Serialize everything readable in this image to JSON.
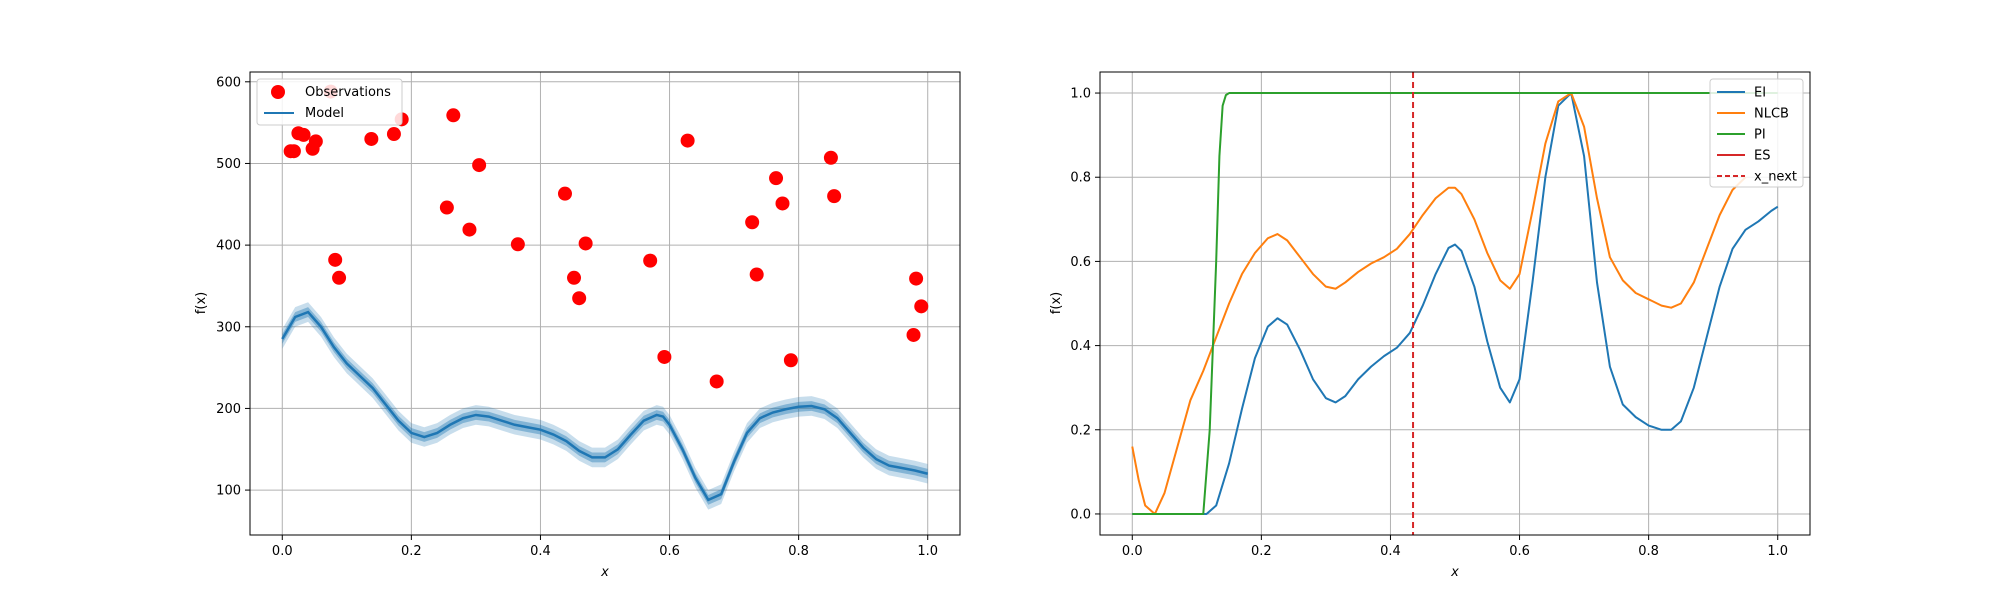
{
  "chart_data": [
    {
      "type": "scatter",
      "title": "",
      "xlabel": "x",
      "ylabel": "f(x)",
      "xlim": [
        -0.05,
        1.05
      ],
      "ylim": [
        45,
        612
      ],
      "xticks": [
        0.0,
        0.2,
        0.4,
        0.6,
        0.8,
        1.0
      ],
      "xtick_labels": [
        "0.0",
        "0.2",
        "0.4",
        "0.6",
        "0.8",
        "1.0"
      ],
      "yticks": [
        100,
        200,
        300,
        400,
        500,
        600
      ],
      "ytick_labels": [
        "100",
        "200",
        "300",
        "400",
        "500",
        "600"
      ],
      "grid": true,
      "legend_position": "top-left",
      "legend": [
        "Observations",
        "Model"
      ],
      "colors": {
        "observations": "#ff0000",
        "model": "#1f77b4",
        "band": "#1f77b4"
      },
      "observations": [
        {
          "x": 0.013,
          "y": 515
        },
        {
          "x": 0.018,
          "y": 515
        },
        {
          "x": 0.025,
          "y": 537
        },
        {
          "x": 0.033,
          "y": 535
        },
        {
          "x": 0.047,
          "y": 518
        },
        {
          "x": 0.052,
          "y": 527
        },
        {
          "x": 0.075,
          "y": 588
        },
        {
          "x": 0.082,
          "y": 382
        },
        {
          "x": 0.088,
          "y": 360
        },
        {
          "x": 0.138,
          "y": 530
        },
        {
          "x": 0.173,
          "y": 536
        },
        {
          "x": 0.185,
          "y": 554
        },
        {
          "x": 0.255,
          "y": 446
        },
        {
          "x": 0.265,
          "y": 559
        },
        {
          "x": 0.29,
          "y": 419
        },
        {
          "x": 0.305,
          "y": 498
        },
        {
          "x": 0.365,
          "y": 401
        },
        {
          "x": 0.438,
          "y": 463
        },
        {
          "x": 0.452,
          "y": 360
        },
        {
          "x": 0.46,
          "y": 335
        },
        {
          "x": 0.47,
          "y": 402
        },
        {
          "x": 0.57,
          "y": 381
        },
        {
          "x": 0.592,
          "y": 263
        },
        {
          "x": 0.628,
          "y": 528
        },
        {
          "x": 0.673,
          "y": 233
        },
        {
          "x": 0.728,
          "y": 428
        },
        {
          "x": 0.735,
          "y": 364
        },
        {
          "x": 0.765,
          "y": 482
        },
        {
          "x": 0.775,
          "y": 451
        },
        {
          "x": 0.788,
          "y": 259
        },
        {
          "x": 0.85,
          "y": 507
        },
        {
          "x": 0.855,
          "y": 460
        },
        {
          "x": 0.978,
          "y": 290
        },
        {
          "x": 0.982,
          "y": 359
        },
        {
          "x": 0.99,
          "y": 325
        }
      ],
      "model": {
        "x": [
          0.0,
          0.02,
          0.04,
          0.06,
          0.08,
          0.1,
          0.12,
          0.14,
          0.16,
          0.18,
          0.2,
          0.22,
          0.24,
          0.26,
          0.28,
          0.3,
          0.32,
          0.34,
          0.36,
          0.38,
          0.4,
          0.42,
          0.44,
          0.46,
          0.48,
          0.5,
          0.52,
          0.54,
          0.56,
          0.58,
          0.59,
          0.6,
          0.62,
          0.64,
          0.66,
          0.68,
          0.7,
          0.72,
          0.74,
          0.76,
          0.78,
          0.8,
          0.82,
          0.84,
          0.86,
          0.88,
          0.9,
          0.92,
          0.94,
          0.96,
          0.98,
          1.0
        ],
        "mean": [
          285,
          312,
          318,
          300,
          275,
          255,
          240,
          225,
          205,
          185,
          170,
          165,
          170,
          180,
          188,
          192,
          190,
          185,
          180,
          177,
          174,
          168,
          160,
          148,
          140,
          140,
          150,
          168,
          185,
          192,
          190,
          180,
          150,
          115,
          88,
          95,
          135,
          170,
          188,
          195,
          199,
          202,
          203,
          199,
          188,
          170,
          152,
          138,
          130,
          127,
          124,
          120
        ],
        "inner_halfwidth": 6,
        "outer_halfwidth": 12
      }
    },
    {
      "type": "line",
      "title": "",
      "xlabel": "x",
      "ylabel": "f(x)",
      "xlim": [
        -0.05,
        1.05
      ],
      "ylim": [
        -0.05,
        1.05
      ],
      "xticks": [
        0.0,
        0.2,
        0.4,
        0.6,
        0.8,
        1.0
      ],
      "xtick_labels": [
        "0.0",
        "0.2",
        "0.4",
        "0.6",
        "0.8",
        "1.0"
      ],
      "yticks": [
        0.0,
        0.2,
        0.4,
        0.6,
        0.8,
        1.0
      ],
      "ytick_labels": [
        "0.0",
        "0.2",
        "0.4",
        "0.6",
        "0.8",
        "1.0"
      ],
      "grid": true,
      "legend_position": "top-right",
      "x_next": 0.435,
      "series": [
        {
          "name": "EI",
          "color": "#1f77b4",
          "x": [
            0.0,
            0.1,
            0.115,
            0.13,
            0.15,
            0.17,
            0.19,
            0.21,
            0.225,
            0.24,
            0.26,
            0.28,
            0.3,
            0.315,
            0.33,
            0.35,
            0.37,
            0.39,
            0.41,
            0.43,
            0.45,
            0.47,
            0.49,
            0.5,
            0.51,
            0.53,
            0.55,
            0.57,
            0.585,
            0.6,
            0.62,
            0.64,
            0.66,
            0.68,
            0.7,
            0.72,
            0.74,
            0.76,
            0.78,
            0.8,
            0.82,
            0.835,
            0.85,
            0.87,
            0.89,
            0.91,
            0.93,
            0.95,
            0.97,
            0.99,
            1.0
          ],
          "values": [
            0.0,
            0.0,
            0.0,
            0.02,
            0.12,
            0.25,
            0.37,
            0.445,
            0.465,
            0.45,
            0.39,
            0.32,
            0.275,
            0.265,
            0.28,
            0.32,
            0.35,
            0.375,
            0.395,
            0.43,
            0.495,
            0.57,
            0.632,
            0.64,
            0.625,
            0.54,
            0.41,
            0.3,
            0.265,
            0.32,
            0.55,
            0.8,
            0.97,
            1.0,
            0.85,
            0.55,
            0.35,
            0.26,
            0.23,
            0.21,
            0.2,
            0.2,
            0.22,
            0.3,
            0.42,
            0.54,
            0.63,
            0.675,
            0.695,
            0.72,
            0.73
          ]
        },
        {
          "name": "NLCB",
          "color": "#ff7f0e",
          "x": [
            0.0,
            0.01,
            0.02,
            0.035,
            0.05,
            0.07,
            0.09,
            0.11,
            0.13,
            0.15,
            0.17,
            0.19,
            0.21,
            0.225,
            0.24,
            0.26,
            0.28,
            0.3,
            0.315,
            0.33,
            0.35,
            0.37,
            0.39,
            0.41,
            0.43,
            0.45,
            0.47,
            0.49,
            0.5,
            0.51,
            0.53,
            0.55,
            0.57,
            0.585,
            0.6,
            0.62,
            0.64,
            0.66,
            0.68,
            0.7,
            0.72,
            0.74,
            0.76,
            0.78,
            0.8,
            0.82,
            0.835,
            0.85,
            0.87,
            0.89,
            0.91,
            0.93,
            0.95
          ],
          "values": [
            0.16,
            0.08,
            0.02,
            0.0,
            0.05,
            0.16,
            0.27,
            0.34,
            0.42,
            0.5,
            0.57,
            0.62,
            0.655,
            0.665,
            0.65,
            0.61,
            0.57,
            0.54,
            0.535,
            0.55,
            0.575,
            0.595,
            0.61,
            0.63,
            0.665,
            0.71,
            0.75,
            0.775,
            0.775,
            0.76,
            0.7,
            0.62,
            0.555,
            0.535,
            0.57,
            0.72,
            0.88,
            0.98,
            1.0,
            0.92,
            0.75,
            0.61,
            0.555,
            0.525,
            0.51,
            0.495,
            0.49,
            0.5,
            0.55,
            0.63,
            0.71,
            0.77,
            0.8
          ]
        },
        {
          "name": "PI",
          "color": "#2ca02c",
          "x": [
            0.0,
            0.11,
            0.12,
            0.13,
            0.135,
            0.14,
            0.145,
            0.15,
            0.2,
            1.0
          ],
          "values": [
            0.0,
            0.0,
            0.2,
            0.6,
            0.85,
            0.97,
            0.995,
            1.0,
            1.0,
            1.0
          ]
        },
        {
          "name": "ES",
          "color": "#d62728",
          "x": [],
          "values": []
        }
      ],
      "legend": [
        "EI",
        "NLCB",
        "PI",
        "ES",
        "x_next"
      ],
      "colors": {
        "x_next": "#d62728"
      }
    }
  ]
}
